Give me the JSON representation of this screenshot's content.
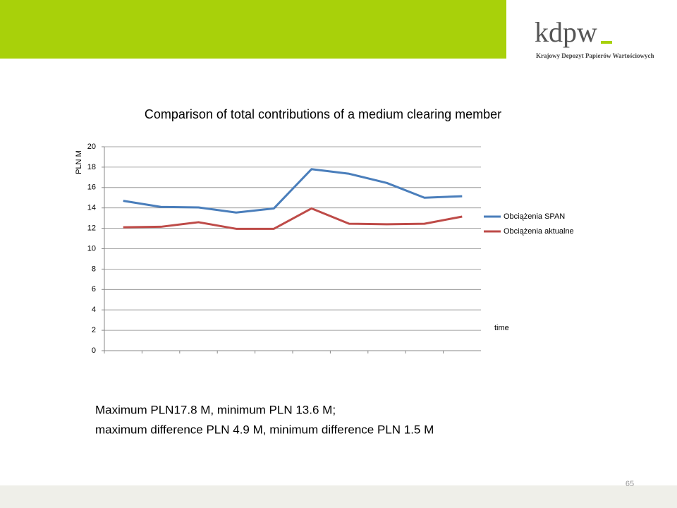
{
  "logo": {
    "name": "kdpw",
    "subtitle": "Krajowy Depozyt Papierów Wartościowych"
  },
  "chart_data": {
    "type": "line",
    "title": "Comparison of total contributions of a medium clearing member",
    "y_label": "PLN M",
    "x_label": "time",
    "categories": [
      null,
      null,
      null,
      null,
      null,
      null,
      null,
      null,
      null,
      null
    ],
    "series": [
      {
        "name": "Obciążenia SPAN",
        "color": "#4a7ebb",
        "values": [
          14.7,
          14.1,
          14.05,
          13.55,
          13.95,
          17.8,
          17.35,
          16.45,
          15.0,
          15.15
        ]
      },
      {
        "name": "Obciążenia aktualne",
        "color": "#be4b48",
        "values": [
          12.1,
          12.15,
          12.6,
          11.95,
          11.95,
          13.95,
          12.45,
          12.4,
          12.45,
          13.15
        ]
      }
    ],
    "ylim": [
      0,
      20
    ],
    "yticks": [
      0,
      2,
      4,
      6,
      8,
      10,
      12,
      14,
      16,
      18,
      20
    ],
    "grid": true,
    "legend": "right"
  },
  "notes": [
    "Maximum  PLN17.8 M, minimum PLN 13.6 M;",
    "maximum difference PLN 4.9 M, minimum difference PLN 1.5 M"
  ],
  "page_number": "65"
}
